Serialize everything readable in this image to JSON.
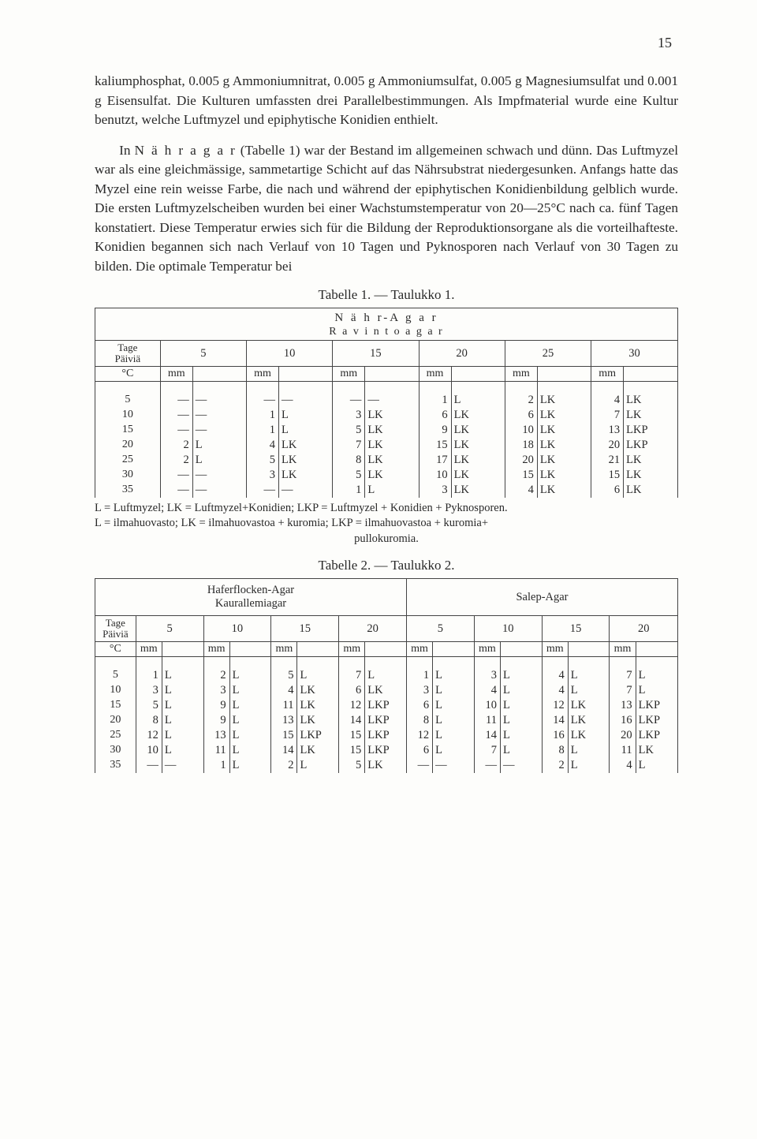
{
  "page_number": "15",
  "paragraph": "kaliumphosphat, 0.005 g Ammoniumnitrat, 0.005 g Ammoniumsulfat, 0.005 g Magnesiumsulfat und 0.001 g Eisensulfat. Die Kulturen umfassten drei Parallelbestimmungen. Als Impfmaterial wurde eine Kultur benutzt, welche Luftmyzel und epiphytische Konidien enthielt.",
  "paragraph_part2a": "In ",
  "paragraph_part2_spaced": "N ä h r a g a r",
  "paragraph_part2b": " (Tabelle 1) war der Bestand im allgemeinen schwach und dünn. Das Luftmyzel war als eine gleichmässige, sammetartige Schicht auf das Nährsubstrat niedergesunken. Anfangs hatte das Myzel eine rein weisse Farbe, die nach und während der epiphytischen Konidienbildung gelblich wurde. Die ersten Luftmyzelscheiben wurden bei einer Wachstumstemperatur von 20—25°C nach ca. fünf Tagen konstatiert. Diese Temperatur erwies sich für die Bildung der Reproduktionsorgane als die vorteilhafteste. Konidien begannen sich nach Verlauf von 10 Tagen und Pyknosporen nach Verlauf von 30 Tagen zu bilden. Die optimale Temperatur bei",
  "table1": {
    "title": "Tabelle 1. — Taulukko 1.",
    "caption1": "N ä h r-A g a r",
    "caption2": "R a v i n t o a g a r",
    "row_header1": "Tage",
    "row_header2": "Päiviä",
    "row_header3": "°C",
    "unit": "mm",
    "temps": [
      "5",
      "10",
      "15",
      "20",
      "25",
      "30"
    ],
    "days": [
      "5",
      "10",
      "15",
      "20",
      "25",
      "30",
      "35"
    ],
    "data": [
      [
        [
          "—",
          "—"
        ],
        [
          "—",
          "—"
        ],
        [
          "—",
          "—"
        ],
        [
          "1",
          "L"
        ],
        [
          "2",
          "LK"
        ],
        [
          "4",
          "LK"
        ]
      ],
      [
        [
          "—",
          "—"
        ],
        [
          "1",
          "L"
        ],
        [
          "3",
          "LK"
        ],
        [
          "6",
          "LK"
        ],
        [
          "6",
          "LK"
        ],
        [
          "7",
          "LK"
        ]
      ],
      [
        [
          "—",
          "—"
        ],
        [
          "1",
          "L"
        ],
        [
          "5",
          "LK"
        ],
        [
          "9",
          "LK"
        ],
        [
          "10",
          "LK"
        ],
        [
          "13",
          "LKP"
        ]
      ],
      [
        [
          "2",
          "L"
        ],
        [
          "4",
          "LK"
        ],
        [
          "7",
          "LK"
        ],
        [
          "15",
          "LK"
        ],
        [
          "18",
          "LK"
        ],
        [
          "20",
          "LKP"
        ]
      ],
      [
        [
          "2",
          "L"
        ],
        [
          "5",
          "LK"
        ],
        [
          "8",
          "LK"
        ],
        [
          "17",
          "LK"
        ],
        [
          "20",
          "LK"
        ],
        [
          "21",
          "LK"
        ]
      ],
      [
        [
          "—",
          "—"
        ],
        [
          "3",
          "LK"
        ],
        [
          "5",
          "LK"
        ],
        [
          "10",
          "LK"
        ],
        [
          "15",
          "LK"
        ],
        [
          "15",
          "LK"
        ]
      ],
      [
        [
          "—",
          "—"
        ],
        [
          "—",
          "—"
        ],
        [
          "1",
          "L"
        ],
        [
          "3",
          "LK"
        ],
        [
          "4",
          "LK"
        ],
        [
          "6",
          "LK"
        ]
      ]
    ],
    "footnote1": "L = Luftmyzel; LK = Luftmyzel+Konidien; LKP = Luftmyzel + Konidien + Pyknosporen.",
    "footnote2": "L = ilmahuovasto; LK = ilmahuovastoa + kuromia; LKP = ilmahuovastoa + kuromia+",
    "footnote3": "pullokuromia."
  },
  "table2": {
    "title": "Tabelle 2. — Taulukko 2.",
    "caption_left1": "Haferflocken-Agar",
    "caption_left2": "Kaurallemiagar",
    "caption_right": "Salep-Agar",
    "row_header1": "Tage",
    "row_header2": "Päiviä",
    "row_header3": "°C",
    "unit": "mm",
    "temps": [
      "5",
      "10",
      "15",
      "20",
      "5",
      "10",
      "15",
      "20"
    ],
    "days": [
      "5",
      "10",
      "15",
      "20",
      "25",
      "30",
      "35"
    ],
    "data": [
      [
        [
          "1",
          "L"
        ],
        [
          "2",
          "L"
        ],
        [
          "5",
          "L"
        ],
        [
          "7",
          "L"
        ],
        [
          "1",
          "L"
        ],
        [
          "3",
          "L"
        ],
        [
          "4",
          "L"
        ],
        [
          "7",
          "L"
        ]
      ],
      [
        [
          "3",
          "L"
        ],
        [
          "3",
          "L"
        ],
        [
          "4",
          "LK"
        ],
        [
          "6",
          "LK"
        ],
        [
          "3",
          "L"
        ],
        [
          "4",
          "L"
        ],
        [
          "4",
          "L"
        ],
        [
          "7",
          "L"
        ]
      ],
      [
        [
          "5",
          "L"
        ],
        [
          "9",
          "L"
        ],
        [
          "11",
          "LK"
        ],
        [
          "12",
          "LKP"
        ],
        [
          "6",
          "L"
        ],
        [
          "10",
          "L"
        ],
        [
          "12",
          "LK"
        ],
        [
          "13",
          "LKP"
        ]
      ],
      [
        [
          "8",
          "L"
        ],
        [
          "9",
          "L"
        ],
        [
          "13",
          "LK"
        ],
        [
          "14",
          "LKP"
        ],
        [
          "8",
          "L"
        ],
        [
          "11",
          "L"
        ],
        [
          "14",
          "LK"
        ],
        [
          "16",
          "LKP"
        ]
      ],
      [
        [
          "12",
          "L"
        ],
        [
          "13",
          "L"
        ],
        [
          "15",
          "LKP"
        ],
        [
          "15",
          "LKP"
        ],
        [
          "12",
          "L"
        ],
        [
          "14",
          "L"
        ],
        [
          "16",
          "LK"
        ],
        [
          "20",
          "LKP"
        ]
      ],
      [
        [
          "10",
          "L"
        ],
        [
          "11",
          "L"
        ],
        [
          "14",
          "LK"
        ],
        [
          "15",
          "LKP"
        ],
        [
          "6",
          "L"
        ],
        [
          "7",
          "L"
        ],
        [
          "8",
          "L"
        ],
        [
          "11",
          "LK"
        ]
      ],
      [
        [
          "—",
          "—"
        ],
        [
          "1",
          "L"
        ],
        [
          "2",
          "L"
        ],
        [
          "5",
          "LK"
        ],
        [
          "—",
          "—"
        ],
        [
          "—",
          "—"
        ],
        [
          "2",
          "L"
        ],
        [
          "4",
          "L"
        ]
      ]
    ]
  }
}
